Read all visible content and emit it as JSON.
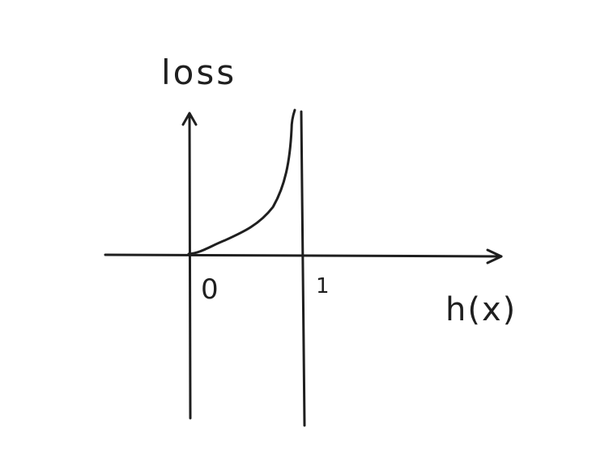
{
  "y_axis_label": "loss",
  "x_axis_label": "h(x)",
  "tick_labels": {
    "origin": "0",
    "one": "1"
  },
  "colors": {
    "ink": "#1f1f1f",
    "background": "#ffffff"
  }
}
